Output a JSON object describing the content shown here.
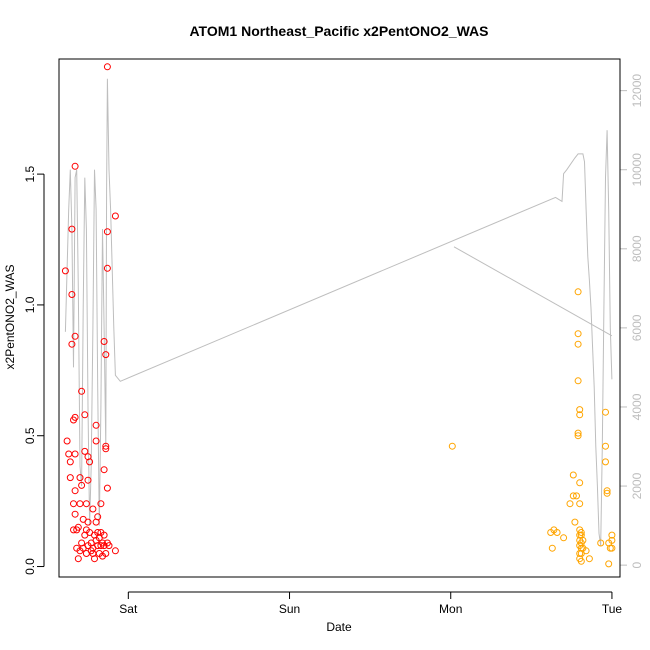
{
  "chart_data": {
    "type": "scatter",
    "title": "ATOM1 Northeast_Pacific x2PentONO2_WAS",
    "xlabel": "Date",
    "ylabel": "x2PentONO2_WAS",
    "x_unit": "days",
    "xlim": [
      -0.43,
      3.05
    ],
    "ylim": [
      -0.04,
      1.94
    ],
    "y2lim": [
      -300,
      12800
    ],
    "x_ticks": [
      {
        "value": 0,
        "label": "Sat"
      },
      {
        "value": 1,
        "label": "Sun"
      },
      {
        "value": 2,
        "label": "Mon"
      },
      {
        "value": 3,
        "label": "Tue"
      }
    ],
    "y_ticks": [
      {
        "value": 0.0,
        "label": "0.0"
      },
      {
        "value": 0.5,
        "label": "0.5"
      },
      {
        "value": 1.0,
        "label": "1.0"
      },
      {
        "value": 1.5,
        "label": "1.5"
      }
    ],
    "y2_ticks": [
      {
        "value": 0,
        "label": "0"
      },
      {
        "value": 2000,
        "label": "2000"
      },
      {
        "value": 4000,
        "label": "4000"
      },
      {
        "value": 6000,
        "label": "6000"
      },
      {
        "value": 8000,
        "label": "8000"
      },
      {
        "value": 10000,
        "label": "10000"
      },
      {
        "value": 12000,
        "label": "12000"
      }
    ],
    "grid": false,
    "colors": {
      "series1": "#ff0000",
      "series2": "#ffa500",
      "altitude": "#bebebe"
    },
    "series": [
      {
        "color": "#ff0000",
        "points": [
          [
            -0.39,
            1.13
          ],
          [
            -0.38,
            0.48
          ],
          [
            -0.37,
            0.43
          ],
          [
            -0.36,
            0.34
          ],
          [
            -0.36,
            0.4
          ],
          [
            -0.35,
            1.29
          ],
          [
            -0.35,
            1.04
          ],
          [
            -0.35,
            0.85
          ],
          [
            -0.34,
            0.56
          ],
          [
            -0.34,
            0.24
          ],
          [
            -0.34,
            0.14
          ],
          [
            -0.33,
            1.53
          ],
          [
            -0.33,
            0.88
          ],
          [
            -0.33,
            0.57
          ],
          [
            -0.33,
            0.43
          ],
          [
            -0.33,
            0.29
          ],
          [
            -0.33,
            0.2
          ],
          [
            -0.32,
            0.14
          ],
          [
            -0.32,
            0.07
          ],
          [
            -0.31,
            0.15
          ],
          [
            -0.31,
            0.03
          ],
          [
            -0.3,
            0.34
          ],
          [
            -0.3,
            0.24
          ],
          [
            -0.3,
            0.06
          ],
          [
            -0.29,
            0.67
          ],
          [
            -0.29,
            0.31
          ],
          [
            -0.29,
            0.09
          ],
          [
            -0.28,
            0.18
          ],
          [
            -0.28,
            0.07
          ],
          [
            -0.27,
            0.58
          ],
          [
            -0.27,
            0.44
          ],
          [
            -0.27,
            0.12
          ],
          [
            -0.26,
            0.24
          ],
          [
            -0.26,
            0.14
          ],
          [
            -0.26,
            0.05
          ],
          [
            -0.25,
            0.42
          ],
          [
            -0.25,
            0.33
          ],
          [
            -0.25,
            0.17
          ],
          [
            -0.25,
            0.08
          ],
          [
            -0.24,
            0.4
          ],
          [
            -0.24,
            0.13
          ],
          [
            -0.23,
            0.09
          ],
          [
            -0.23,
            0.06
          ],
          [
            -0.22,
            0.22
          ],
          [
            -0.22,
            0.07
          ],
          [
            -0.22,
            0.05
          ],
          [
            -0.21,
            0.12
          ],
          [
            -0.21,
            0.03
          ],
          [
            -0.2,
            0.54
          ],
          [
            -0.2,
            0.48
          ],
          [
            -0.2,
            0.17
          ],
          [
            -0.2,
            0.1
          ],
          [
            -0.19,
            0.19
          ],
          [
            -0.19,
            0.13
          ],
          [
            -0.19,
            0.08
          ],
          [
            -0.18,
            0.11
          ],
          [
            -0.18,
            0.05
          ],
          [
            -0.17,
            0.24
          ],
          [
            -0.17,
            0.13
          ],
          [
            -0.17,
            0.08
          ],
          [
            -0.16,
            0.09
          ],
          [
            -0.16,
            0.04
          ],
          [
            -0.15,
            0.86
          ],
          [
            -0.15,
            0.37
          ],
          [
            -0.15,
            0.12
          ],
          [
            -0.15,
            0.08
          ],
          [
            -0.14,
            0.81
          ],
          [
            -0.14,
            0.45
          ],
          [
            -0.14,
            0.46
          ],
          [
            -0.14,
            0.05
          ],
          [
            -0.13,
            1.91
          ],
          [
            -0.13,
            1.28
          ],
          [
            -0.13,
            1.14
          ],
          [
            -0.13,
            0.3
          ],
          [
            -0.13,
            0.09
          ],
          [
            -0.12,
            0.08
          ],
          [
            -0.08,
            1.34
          ],
          [
            -0.08,
            0.06
          ]
        ]
      },
      {
        "color": "#ffa500",
        "points": [
          [
            2.01,
            0.46
          ],
          [
            2.62,
            0.13
          ],
          [
            2.63,
            0.07
          ],
          [
            2.64,
            0.14
          ],
          [
            2.66,
            0.13
          ],
          [
            2.7,
            0.11
          ],
          [
            2.74,
            0.24
          ],
          [
            2.76,
            0.35
          ],
          [
            2.76,
            0.27
          ],
          [
            2.77,
            0.17
          ],
          [
            2.78,
            0.27
          ],
          [
            2.79,
            1.05
          ],
          [
            2.79,
            0.89
          ],
          [
            2.79,
            0.85
          ],
          [
            2.79,
            0.71
          ],
          [
            2.79,
            0.51
          ],
          [
            2.79,
            0.5
          ],
          [
            2.8,
            0.6
          ],
          [
            2.8,
            0.58
          ],
          [
            2.8,
            0.32
          ],
          [
            2.8,
            0.24
          ],
          [
            2.8,
            0.14
          ],
          [
            2.8,
            0.12
          ],
          [
            2.8,
            0.1
          ],
          [
            2.8,
            0.08
          ],
          [
            2.8,
            0.05
          ],
          [
            2.8,
            0.03
          ],
          [
            2.81,
            0.13
          ],
          [
            2.81,
            0.12
          ],
          [
            2.81,
            0.09
          ],
          [
            2.81,
            0.07
          ],
          [
            2.81,
            0.05
          ],
          [
            2.81,
            0.02
          ],
          [
            2.82,
            0.1
          ],
          [
            2.82,
            0.07
          ],
          [
            2.84,
            0.06
          ],
          [
            2.86,
            0.03
          ],
          [
            2.93,
            0.09
          ],
          [
            2.96,
            0.59
          ],
          [
            2.96,
            0.46
          ],
          [
            2.96,
            0.4
          ],
          [
            2.97,
            0.29
          ],
          [
            2.97,
            0.28
          ],
          [
            2.98,
            0.09
          ],
          [
            2.98,
            0.01
          ],
          [
            2.99,
            0.07
          ],
          [
            3.0,
            0.12
          ],
          [
            3.0,
            0.1
          ],
          [
            3.0,
            0.07
          ]
        ]
      }
    ],
    "altitude": {
      "axis": "right",
      "color": "#bebebe",
      "segments": [
        [
          [
            -0.39,
            5900
          ],
          [
            -0.37,
            9000
          ],
          [
            -0.36,
            10000
          ],
          [
            -0.35,
            8500
          ],
          [
            -0.34,
            5000
          ],
          [
            -0.33,
            9800
          ],
          [
            -0.32,
            10000
          ],
          [
            -0.31,
            7000
          ],
          [
            -0.3,
            2500
          ],
          [
            -0.29,
            2000
          ],
          [
            -0.28,
            6500
          ],
          [
            -0.27,
            9800
          ],
          [
            -0.26,
            8500
          ],
          [
            -0.25,
            4000
          ],
          [
            -0.24,
            1000
          ],
          [
            -0.23,
            2500
          ],
          [
            -0.22,
            6000
          ],
          [
            -0.21,
            10000
          ],
          [
            -0.2,
            9000
          ],
          [
            -0.19,
            4500
          ],
          [
            -0.18,
            1000
          ],
          [
            -0.17,
            4000
          ],
          [
            -0.16,
            8500
          ],
          [
            -0.15,
            6000
          ],
          [
            -0.14,
            3000
          ],
          [
            -0.135,
            9500
          ],
          [
            -0.13,
            12300
          ],
          [
            -0.12,
            10000
          ],
          [
            -0.11,
            9000
          ],
          [
            -0.09,
            6000
          ],
          [
            -0.08,
            4800
          ],
          [
            -0.05,
            4650
          ],
          [
            2.65,
            9300
          ],
          [
            2.69,
            9200
          ],
          [
            2.7,
            9900
          ],
          [
            2.72,
            10000
          ],
          [
            2.77,
            10300
          ],
          [
            2.79,
            10400
          ],
          [
            2.82,
            10400
          ],
          [
            2.83,
            10200
          ],
          [
            2.84,
            9000
          ],
          [
            2.85,
            7800
          ],
          [
            2.86,
            7200
          ],
          [
            2.87,
            6500
          ],
          [
            2.88,
            5500
          ],
          [
            2.89,
            4500
          ],
          [
            2.9,
            3000
          ],
          [
            2.91,
            2000
          ],
          [
            2.92,
            800
          ],
          [
            2.93,
            500
          ],
          [
            2.94,
            3000
          ],
          [
            2.95,
            6500
          ],
          [
            2.96,
            9800
          ],
          [
            2.97,
            11000
          ],
          [
            2.98,
            9000
          ],
          [
            2.99,
            6000
          ],
          [
            3.0,
            4700
          ]
        ],
        [
          [
            2.02,
            8050
          ],
          [
            3.0,
            5800
          ]
        ]
      ]
    }
  }
}
